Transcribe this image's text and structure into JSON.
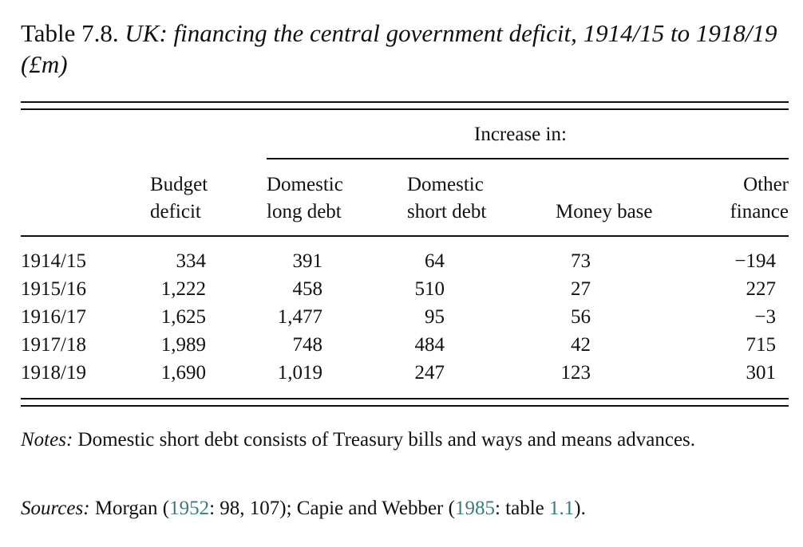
{
  "title": {
    "label": "Table 7.8.",
    "description": "UK: financing the central government deficit, 1914/15 to 1918/19 (£m)"
  },
  "table": {
    "spanner": "Increase in:",
    "columns": [
      {
        "line1": "Budget",
        "line2": "deficit"
      },
      {
        "line1": "Domestic",
        "line2": "long debt"
      },
      {
        "line1": "Domestic",
        "line2": "short debt"
      },
      {
        "line1": "",
        "line2": "Money base"
      },
      {
        "line1": "Other",
        "line2": "finance"
      }
    ],
    "rows": [
      {
        "year": "1914/15",
        "values": [
          "334",
          "391",
          "64",
          "73",
          "−194"
        ]
      },
      {
        "year": "1915/16",
        "values": [
          "1,222",
          "458",
          "510",
          "27",
          "227"
        ]
      },
      {
        "year": "1916/17",
        "values": [
          "1,625",
          "1,477",
          "95",
          "56",
          "−3"
        ]
      },
      {
        "year": "1917/18",
        "values": [
          "1,989",
          "748",
          "484",
          "42",
          "715"
        ]
      },
      {
        "year": "1918/19",
        "values": [
          "1,690",
          "1,019",
          "247",
          "123",
          "301"
        ]
      }
    ]
  },
  "notes": {
    "label": "Notes:",
    "text": "Domestic short debt consists of Treasury bills and ways and means advances."
  },
  "sources": {
    "label": "Sources:",
    "part1": "Morgan (",
    "ref1_year": "1952",
    "part2": ": 98, 107); Capie and Webber (",
    "ref2_year": "1985",
    "part3": ": table ",
    "ref2_table": "1.1",
    "part4": ")."
  }
}
